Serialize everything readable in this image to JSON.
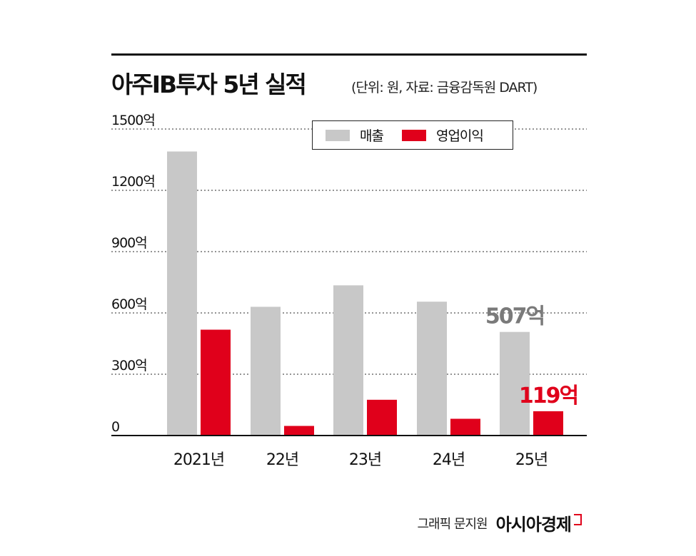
{
  "title": "아주IB투자 5년 실적",
  "subtitle": "(단위: 원, 자료: 금융감독원 DART)",
  "credit": {
    "text": "그래픽 문지원",
    "brand": "아시아경제"
  },
  "chart_data": {
    "type": "bar",
    "categories": [
      "2021년",
      "22년",
      "23년",
      "24년",
      "25년"
    ],
    "series": [
      {
        "name": "매출",
        "color": "#c8c8c8",
        "values": [
          1390,
          630,
          735,
          655,
          507
        ]
      },
      {
        "name": "영업이익",
        "color": "#e0001b",
        "values": [
          518,
          47,
          175,
          82,
          119
        ]
      }
    ],
    "yticks": [
      {
        "value": 0,
        "label": "0"
      },
      {
        "value": 300,
        "label": "300억"
      },
      {
        "value": 600,
        "label": "600억"
      },
      {
        "value": 900,
        "label": "900억"
      },
      {
        "value": 1200,
        "label": "1200억"
      },
      {
        "value": 1500,
        "label": "1500억"
      }
    ],
    "ylim": [
      0,
      1500
    ],
    "grid": true,
    "legend_position": "top-right",
    "annotations": [
      {
        "series": 0,
        "index": 4,
        "text": "507억",
        "color": "#7a7a7a"
      },
      {
        "series": 1,
        "index": 4,
        "text": "119억",
        "color": "#e0001b"
      }
    ]
  }
}
